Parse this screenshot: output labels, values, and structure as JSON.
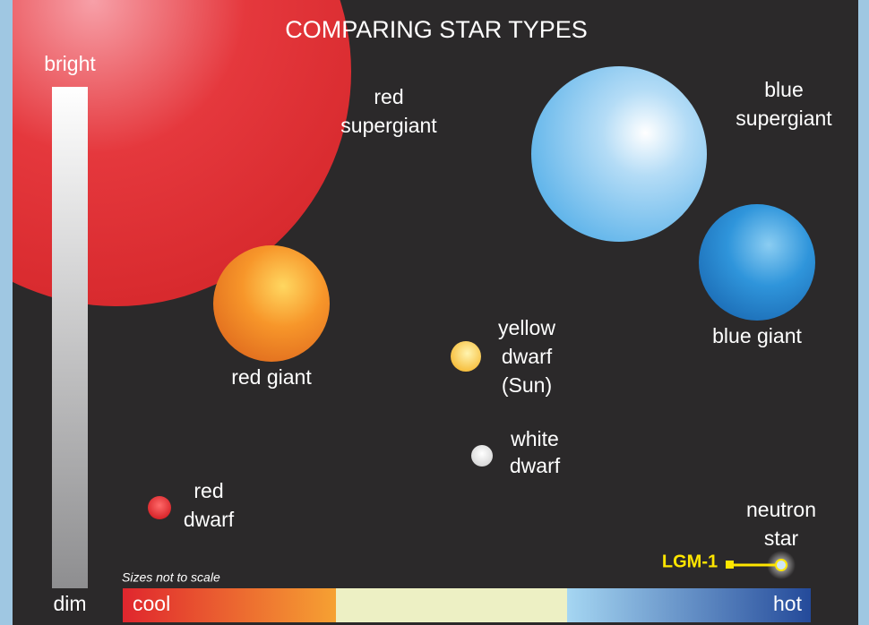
{
  "title": "COMPARING STAR TYPES",
  "brightness_scale": {
    "top": "bright",
    "bottom": "dim"
  },
  "stars": [
    {
      "label": [
        "red",
        "supergiant"
      ]
    },
    {
      "label": [
        "blue",
        "supergiant"
      ]
    },
    {
      "label": [
        "blue giant"
      ]
    },
    {
      "label": [
        "red giant"
      ]
    },
    {
      "label": [
        "yellow",
        "dwarf",
        "(Sun)"
      ]
    },
    {
      "label": [
        "white",
        "dwarf"
      ]
    },
    {
      "label": [
        "red",
        "dwarf"
      ]
    },
    {
      "label": [
        "neutron",
        "star"
      ]
    }
  ],
  "callout": "LGM-1",
  "note": "Sizes not to scale",
  "temperature_scale": {
    "left": "cool",
    "right": "hot"
  }
}
